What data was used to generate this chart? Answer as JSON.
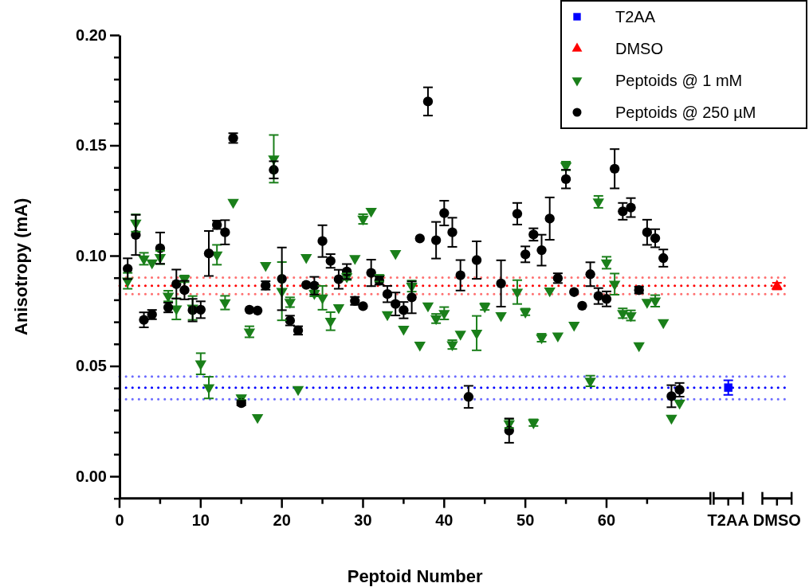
{
  "chart_data": {
    "type": "scatter",
    "xlabel": "Peptoid Number",
    "ylabel": "Anisotropy (mA)",
    "xlim": [
      0,
      82
    ],
    "ylim": [
      -0.01,
      0.2
    ],
    "xticks": [
      0,
      {
        "value": 5,
        "label": null
      },
      10,
      {
        "value": 15,
        "label": null
      },
      20,
      {
        "value": 25,
        "label": null
      },
      30,
      {
        "value": 35,
        "label": null
      },
      40,
      {
        "value": 45,
        "label": null
      },
      50,
      {
        "value": 55,
        "label": null
      },
      60,
      {
        "value": 65,
        "label": null
      },
      {
        "value": 75,
        "label": "T2AA"
      },
      {
        "value": 81,
        "label": "DMSO"
      }
    ],
    "yticks": [
      {
        "value": -0.01,
        "label": null
      },
      {
        "value": 0,
        "label": "0.00"
      },
      {
        "value": 0.01,
        "label": null
      },
      {
        "value": 0.02,
        "label": null
      },
      {
        "value": 0.03,
        "label": null
      },
      {
        "value": 0.04,
        "label": null
      },
      {
        "value": 0.05,
        "label": "0.05"
      },
      {
        "value": 0.06,
        "label": null
      },
      {
        "value": 0.07,
        "label": null
      },
      {
        "value": 0.08,
        "label": null
      },
      {
        "value": 0.09,
        "label": null
      },
      {
        "value": 0.1,
        "label": "0.10"
      },
      {
        "value": 0.11,
        "label": null
      },
      {
        "value": 0.12,
        "label": null
      },
      {
        "value": 0.13,
        "label": null
      },
      {
        "value": 0.14,
        "label": null
      },
      {
        "value": 0.15,
        "label": "0.15"
      },
      {
        "value": 0.16,
        "label": null
      },
      {
        "value": 0.17,
        "label": null
      },
      {
        "value": 0.18,
        "label": null
      },
      {
        "value": 0.19,
        "label": null
      },
      {
        "value": 0.2,
        "label": "0.20"
      }
    ],
    "grid": false,
    "legend": "top right",
    "ref_lines": [
      {
        "axis": "y",
        "value": 0.0402,
        "color": "#0000ff",
        "line_style": "dotted"
      },
      {
        "axis": "y",
        "value": 0.0864,
        "color": "#ff0000",
        "line_style": "dotted"
      },
      {
        "axis": "y",
        "value": 0.0349,
        "color": "#6a6aff",
        "line_style": "dotted"
      },
      {
        "axis": "y",
        "value": 0.0452,
        "color": "#6a6aff",
        "line_style": "dotted"
      },
      {
        "axis": "y",
        "value": 0.0826,
        "color": "#ff7070",
        "line_style": "dotted"
      },
      {
        "axis": "y",
        "value": 0.0901,
        "color": "#ff7070",
        "line_style": "dotted"
      }
    ],
    "series": [
      {
        "name": "T2AA",
        "color": "#0000ff",
        "marker": "square",
        "x": [
          75
        ],
        "values": [
          0.0402
        ],
        "errors": [
          0.0033
        ]
      },
      {
        "name": "DMSO",
        "color": "#ff0000",
        "marker": "triangle",
        "x": [
          81
        ],
        "values": [
          0.0862
        ],
        "errors": [
          0.0015
        ]
      },
      {
        "name": "Peptoids @ 1 mM",
        "color": "#1a7f1a",
        "marker": "triangle-down",
        "x": [
          1,
          2,
          3,
          4,
          5,
          6,
          7,
          8,
          9,
          10,
          11,
          12,
          13,
          14,
          15,
          16,
          17,
          18,
          19,
          20,
          21,
          22,
          23,
          24,
          25,
          26,
          27,
          28,
          29,
          30,
          31,
          32,
          33,
          34,
          35,
          36,
          37,
          38,
          39,
          40,
          41,
          42,
          43,
          44,
          45,
          46,
          47,
          48,
          49,
          50,
          51,
          52,
          53,
          54,
          55,
          56,
          57,
          58,
          59,
          60,
          61,
          62,
          63,
          64,
          65,
          66,
          67,
          68,
          69
        ],
        "values": [
          0.0886,
          0.1148,
          0.0986,
          0.0968,
          0.0992,
          0.0817,
          0.0759,
          0.0895,
          0.0763,
          0.051,
          0.0402,
          0.1004,
          0.0787,
          0.1242,
          0.0356,
          0.0655,
          0.0267,
          0.0956,
          0.1439,
          0.0839,
          0.0789,
          0.0394,
          0.0992,
          0.0829,
          0.0809,
          0.0703,
          0.0765,
          0.0905,
          0.0988,
          0.1166,
          0.1202,
          0.0898,
          0.0733,
          0.101,
          0.0667,
          0.0862,
          0.0595,
          0.0773,
          0.0715,
          0.0739,
          0.0597,
          0.0645,
          null,
          0.0649,
          0.0769,
          null,
          0.0729,
          0.0239,
          0.0835,
          0.0745,
          0.0243,
          0.0628,
          0.0841,
          0.0637,
          0.1407,
          0.0685,
          null,
          0.0432,
          0.1244,
          0.0968,
          0.0871,
          0.0739,
          0.0729,
          0.0592,
          0.0789,
          0.0795,
          0.0697,
          0.0264,
          0.0332
        ],
        "errors": [
          0.0036,
          0.0039,
          0.0027,
          null,
          0.003,
          0.0024,
          0.0048,
          0.0015,
          0.0054,
          0.0048,
          0.0049,
          0.0045,
          0.0031,
          null,
          0.001,
          0.0025,
          null,
          null,
          0.0108,
          0.0132,
          0.0022,
          null,
          null,
          0.0013,
          0.0054,
          0.0041,
          null,
          0.0015,
          null,
          0.0022,
          null,
          0.0015,
          null,
          null,
          null,
          0.0025,
          null,
          null,
          0.0021,
          0.0028,
          0.002,
          null,
          null,
          0.0078,
          0.0015,
          null,
          null,
          0.002,
          0.0054,
          0.0015,
          0.0015,
          0.0018,
          null,
          null,
          0.0019,
          null,
          null,
          0.0024,
          0.0027,
          0.0027,
          0.0048,
          0.0022,
          0.0023,
          null,
          null,
          0.0026,
          null,
          null,
          null
        ]
      },
      {
        "name": "Peptoids @ 250 µM",
        "color": "#000000",
        "marker": "circle",
        "x": [
          1,
          2,
          3,
          4,
          5,
          6,
          7,
          8,
          9,
          10,
          11,
          12,
          13,
          14,
          15,
          16,
          17,
          18,
          19,
          20,
          21,
          22,
          23,
          24,
          25,
          26,
          27,
          28,
          29,
          30,
          31,
          32,
          33,
          34,
          35,
          36,
          37,
          38,
          39,
          40,
          41,
          42,
          43,
          44,
          45,
          46,
          47,
          48,
          49,
          50,
          51,
          52,
          53,
          54,
          55,
          56,
          57,
          58,
          59,
          60,
          61,
          62,
          63,
          64,
          65,
          66,
          67,
          68,
          69
        ],
        "values": [
          0.0941,
          0.1094,
          0.0709,
          0.0733,
          0.1034,
          0.0765,
          0.0871,
          0.0844,
          0.0753,
          0.0755,
          0.101,
          0.114,
          0.1106,
          0.1533,
          0.0332,
          0.0755,
          0.0751,
          0.0865,
          0.1389,
          0.0895,
          0.0706,
          0.0661,
          0.0868,
          0.0864,
          0.1066,
          0.0976,
          0.0893,
          0.0928,
          0.0795,
          0.0771,
          0.0922,
          0.0887,
          0.0826,
          0.0781,
          0.0753,
          0.0811,
          0.1078,
          0.1699,
          0.107,
          0.1193,
          0.1106,
          0.0911,
          0.036,
          0.098,
          null,
          null,
          0.0874,
          0.0207,
          0.119,
          0.1006,
          0.1096,
          0.1025,
          0.1168,
          0.0898,
          0.1347,
          0.0835,
          0.0773,
          0.0916,
          0.0817,
          0.0804,
          0.1394,
          0.1201,
          0.1218,
          0.0844,
          0.1106,
          0.1079,
          0.0989,
          0.0363,
          0.0392
        ],
        "errors": [
          0.0047,
          0.0091,
          0.0034,
          0.0021,
          0.0071,
          0.0022,
          0.0066,
          0.0042,
          0.0051,
          0.0038,
          0.0102,
          0.0019,
          0.0055,
          0.0022,
          0.001,
          null,
          null,
          0.0019,
          0.0039,
          0.0142,
          0.0022,
          0.0019,
          null,
          0.004,
          0.0072,
          0.0031,
          0.0043,
          0.0034,
          0.0018,
          null,
          0.006,
          0.0018,
          0.0037,
          0.0052,
          0.0037,
          0.0072,
          null,
          0.0064,
          0.0083,
          0.0056,
          0.0066,
          0.0069,
          0.005,
          0.0085,
          null,
          null,
          0.0105,
          0.0055,
          0.0049,
          0.0036,
          0.0028,
          0.007,
          0.0096,
          0.0022,
          0.0042,
          null,
          null,
          0.0054,
          0.0036,
          0.0034,
          0.0089,
          0.0038,
          0.0043,
          0.0015,
          0.0057,
          0.0041,
          0.0039,
          0.005,
          0.0031
        ]
      }
    ]
  }
}
